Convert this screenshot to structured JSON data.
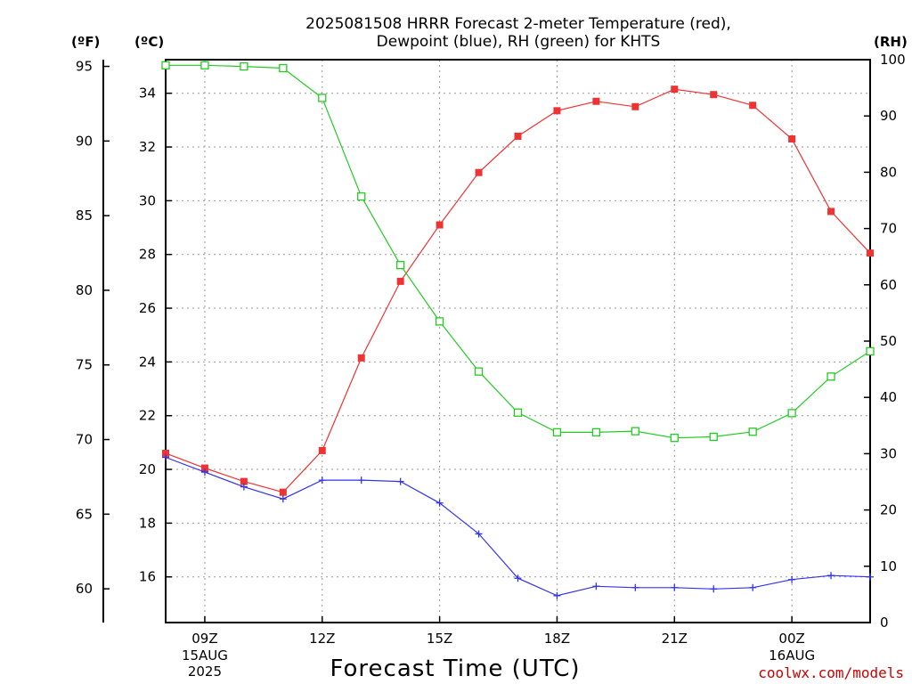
{
  "title": {
    "line1": "2025081508 HRRR Forecast 2-meter Temperature (red),",
    "line2": "Dewpoint (blue), RH (green) for KHTS"
  },
  "units": {
    "fahrenheit": "(ºF)",
    "celsius": "(ºC)",
    "rh": "(RH)"
  },
  "xaxis_label": "Forecast Time (UTC)",
  "credit": "coolwx.com/models",
  "colors": {
    "temperature": "#ee3333",
    "dewpoint": "#3333ee",
    "rh": "#22cc22",
    "grid": "#999999"
  },
  "chart_data": {
    "type": "line",
    "title": "2025081508 HRRR Forecast 2-meter Temperature (red), Dewpoint (blue), RH (green) for KHTS",
    "xlabel": "Forecast Time (UTC)",
    "x_hours_utc": [
      "08Z",
      "09Z",
      "10Z",
      "11Z",
      "12Z",
      "13Z",
      "14Z",
      "15Z",
      "16Z",
      "17Z",
      "18Z",
      "19Z",
      "20Z",
      "21Z",
      "22Z",
      "23Z",
      "00Z",
      "01Z",
      "02Z"
    ],
    "x_ticks": [
      {
        "label": "09Z",
        "sub": [
          "15AUG",
          "2025"
        ]
      },
      {
        "label": "12Z",
        "sub": []
      },
      {
        "label": "15Z",
        "sub": []
      },
      {
        "label": "18Z",
        "sub": []
      },
      {
        "label": "21Z",
        "sub": []
      },
      {
        "label": "00Z",
        "sub": [
          "16AUG"
        ]
      }
    ],
    "x_tick_hour_index": [
      1,
      4,
      7,
      10,
      13,
      16
    ],
    "celsius_axis": {
      "ylim": [
        14.3,
        35.25
      ],
      "ticks": [
        16,
        18,
        20,
        22,
        24,
        26,
        28,
        30,
        32,
        34
      ]
    },
    "fahrenheit_axis": {
      "ticks": [
        60,
        65,
        70,
        75,
        80,
        85,
        90,
        95
      ]
    },
    "rh_axis": {
      "ylim": [
        0,
        100
      ],
      "ticks": [
        0,
        10,
        20,
        30,
        40,
        50,
        60,
        70,
        80,
        90,
        100
      ]
    },
    "grid": true,
    "series": [
      {
        "name": "Temperature",
        "axis": "celsius",
        "color": "#ee3333",
        "marker": "filled-square",
        "values": [
          20.6,
          20.05,
          19.55,
          19.15,
          20.7,
          24.15,
          27.0,
          29.1,
          31.05,
          32.4,
          33.35,
          33.7,
          33.5,
          34.15,
          33.95,
          33.55,
          32.3,
          29.6,
          28.05
        ]
      },
      {
        "name": "Dewpoint",
        "axis": "celsius",
        "color": "#3333ee",
        "marker": "plus",
        "values": [
          20.45,
          19.9,
          19.35,
          18.9,
          19.6,
          19.6,
          19.55,
          18.75,
          17.6,
          15.95,
          15.3,
          15.65,
          15.6,
          15.6,
          15.55,
          15.6,
          15.9,
          16.05,
          16.0
        ]
      },
      {
        "name": "RH",
        "axis": "rh",
        "color": "#22cc22",
        "marker": "open-square",
        "values": [
          99,
          99,
          98.8,
          98.5,
          93.2,
          75.7,
          63.5,
          53.5,
          44.6,
          37.3,
          33.8,
          33.8,
          34.0,
          32.8,
          33.0,
          33.9,
          37.2,
          43.7,
          48.2
        ]
      }
    ]
  }
}
